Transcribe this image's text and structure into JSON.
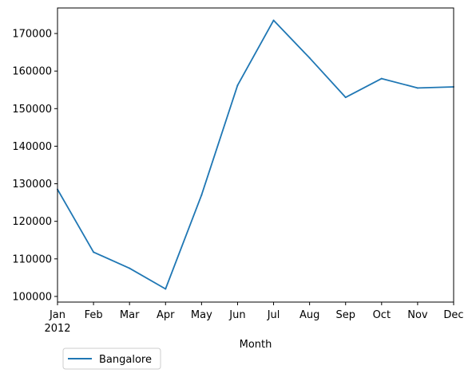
{
  "chart_data": {
    "type": "line",
    "title": "",
    "xlabel": "Month",
    "ylabel": "",
    "categories": [
      "Jan",
      "Feb",
      "Mar",
      "Apr",
      "May",
      "Jun",
      "Jul",
      "Aug",
      "Sep",
      "Oct",
      "Nov",
      "Dec"
    ],
    "year_label": "2012",
    "ylim": [
      98500,
      176800
    ],
    "yticks": [
      100000,
      110000,
      120000,
      130000,
      140000,
      150000,
      160000,
      170000
    ],
    "series": [
      {
        "name": "Bangalore",
        "color": "#1f77b4",
        "values": [
          128500,
          111800,
          107500,
          102000,
          127000,
          156200,
          173500,
          163500,
          153000,
          158000,
          155500,
          155800
        ]
      }
    ],
    "legend_position": "below-left",
    "grid": false
  }
}
